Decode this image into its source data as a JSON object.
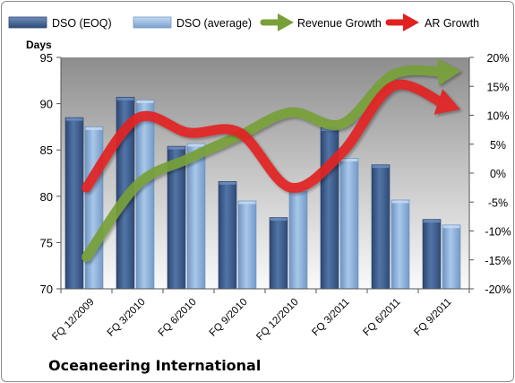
{
  "company": "Oceaneering International",
  "chart_data": {
    "type": "bar",
    "title": "",
    "categories": [
      "FQ 12/2009",
      "FQ 3/2010",
      "FQ 6/2010",
      "FQ 9/2010",
      "FQ 12/2010",
      "FQ 3/2011",
      "FQ 6/2011",
      "FQ 9/2011"
    ],
    "y_left": {
      "label": "Days",
      "range": [
        70,
        95
      ],
      "ticks": [
        "70",
        "75",
        "80",
        "85",
        "90",
        "95"
      ]
    },
    "y_right": {
      "range": [
        -20,
        20
      ],
      "ticks": [
        "-20%",
        "-15%",
        "-10%",
        "-5%",
        "0%",
        "5%",
        "10%",
        "15%",
        "20%"
      ]
    },
    "bar_series": [
      {
        "name": "DSO (EOQ)",
        "color": "#3f5f8f",
        "values": [
          88.5,
          90.7,
          85.4,
          81.6,
          77.7,
          87.4,
          83.4,
          77.5
        ]
      },
      {
        "name": "DSO (average)",
        "color": "#8fb3dc",
        "values": [
          87.5,
          90.4,
          85.7,
          79.5,
          80.9,
          84.1,
          79.6,
          76.9
        ]
      }
    ],
    "line_series": [
      {
        "name": "Revenue Growth",
        "color": "#77a038",
        "values": [
          -14.5,
          -2.0,
          2.5,
          6.5,
          10.5,
          8.5,
          17.0,
          17.5
        ]
      },
      {
        "name": "AR Growth",
        "color": "#e22020",
        "values": [
          -2.5,
          9.5,
          7.0,
          7.0,
          -2.5,
          3.5,
          15.0,
          12.0
        ]
      }
    ],
    "legend_position": "top",
    "grid": false
  }
}
